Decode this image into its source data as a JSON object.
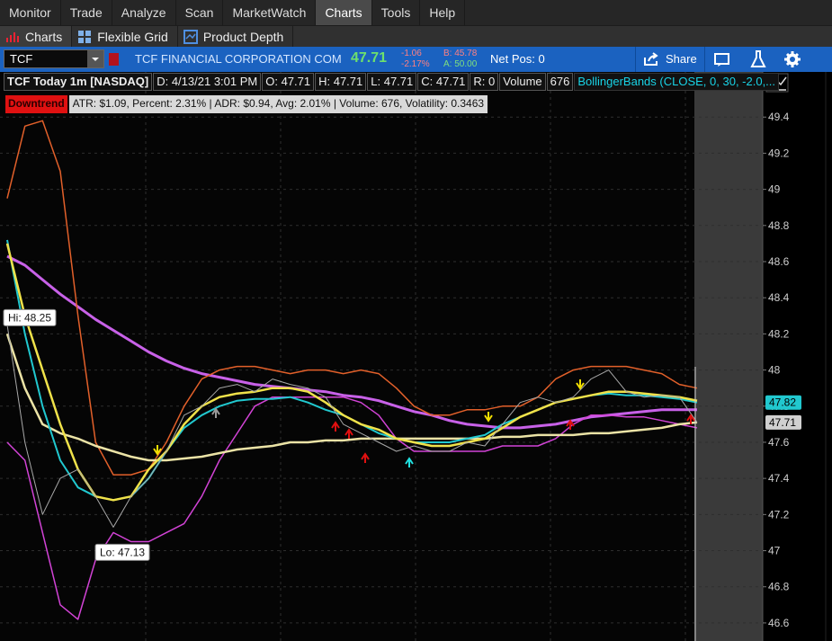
{
  "menu": {
    "items": [
      "Monitor",
      "Trade",
      "Analyze",
      "Scan",
      "MarketWatch",
      "Charts",
      "Tools",
      "Help"
    ],
    "active_index": 5
  },
  "subtabs": [
    "Charts",
    "Flexible Grid",
    "Product Depth"
  ],
  "quote": {
    "symbol": "TCF",
    "company": "TCF FINANCIAL CORPORATION COM",
    "last": "47.71",
    "change": "-1.06",
    "change_pct": "-2.17%",
    "bid": "B: 45.78",
    "ask": "A: 50.00",
    "net_pos": "Net Pos: 0",
    "share": "Share"
  },
  "chart": {
    "header": [
      "TCF Today 1m [NASDAQ]",
      "D: 4/13/21 3:01 PM",
      "O: 47.71",
      "H: 47.71",
      "L: 47.71",
      "C: 47.71",
      "R: 0",
      "Volume",
      "676"
    ],
    "study": "BollingerBands (CLOSE, 0, 30, -2.0,...",
    "trend": "Downtrend",
    "stats": "ATR: $1.09, Percent: 2.31% | ADR: $0.94,  Avg: 2.01% | Volume: 676, Volatility: 0.3463",
    "hi_label": "Hi: 48.25",
    "lo_label": "Lo: 47.13",
    "ylim": [
      46.5,
      49.65
    ],
    "yticks": [
      49.4,
      49.2,
      49,
      48.8,
      48.6,
      48.4,
      48.2,
      48,
      47.8,
      47.6,
      47.4,
      47.2,
      47,
      46.8,
      46.6
    ],
    "grid": true,
    "series": [
      {
        "color": "#c861e8",
        "width": 3,
        "values": [
          48.63,
          48.58,
          48.5,
          48.42,
          48.35,
          48.28,
          48.22,
          48.16,
          48.1,
          48.05,
          48.01,
          47.98,
          47.96,
          47.94,
          47.92,
          47.91,
          47.9,
          47.89,
          47.88,
          47.86,
          47.85,
          47.83,
          47.8,
          47.77,
          47.75,
          47.72,
          47.7,
          47.69,
          47.68,
          47.68,
          47.69,
          47.7,
          47.72,
          47.74,
          47.75,
          47.76,
          47.77,
          47.78,
          47.78,
          47.78
        ]
      },
      {
        "color": "#e2602a",
        "width": 1.5,
        "values": [
          48.95,
          49.35,
          49.38,
          49.1,
          48.3,
          47.6,
          47.42,
          47.42,
          47.45,
          47.6,
          47.8,
          47.95,
          48.0,
          48.02,
          48.02,
          48.0,
          47.98,
          48.0,
          48.0,
          47.98,
          48.0,
          47.98,
          47.9,
          47.8,
          47.75,
          47.75,
          47.78,
          47.78,
          47.8,
          47.8,
          47.85,
          47.95,
          48.0,
          48.02,
          48.02,
          48.02,
          48.0,
          47.98,
          47.92,
          47.9
        ]
      },
      {
        "color": "#d243d6",
        "width": 1.5,
        "values": [
          47.6,
          47.5,
          47.1,
          46.7,
          46.62,
          46.95,
          47.1,
          47.05,
          47.05,
          47.1,
          47.15,
          47.3,
          47.5,
          47.65,
          47.8,
          47.85,
          47.85,
          47.85,
          47.85,
          47.85,
          47.82,
          47.75,
          47.62,
          47.55,
          47.55,
          47.55,
          47.55,
          47.55,
          47.58,
          47.58,
          47.58,
          47.62,
          47.7,
          47.75,
          47.75,
          47.74,
          47.74,
          47.72,
          47.7,
          47.68
        ]
      },
      {
        "color": "#ebe3a6",
        "width": 2.5,
        "values": [
          48.2,
          47.9,
          47.7,
          47.65,
          47.62,
          47.58,
          47.55,
          47.52,
          47.5,
          47.5,
          47.51,
          47.52,
          47.54,
          47.56,
          47.57,
          47.58,
          47.6,
          47.6,
          47.61,
          47.61,
          47.62,
          47.62,
          47.62,
          47.62,
          47.62,
          47.62,
          47.62,
          47.62,
          47.63,
          47.63,
          47.64,
          47.64,
          47.64,
          47.65,
          47.65,
          47.66,
          47.67,
          47.68,
          47.7,
          47.71
        ]
      },
      {
        "color": "#21c8cf",
        "width": 2,
        "values": [
          48.72,
          48.2,
          47.8,
          47.5,
          47.35,
          47.3,
          47.28,
          47.3,
          47.4,
          47.55,
          47.68,
          47.75,
          47.8,
          47.83,
          47.84,
          47.84,
          47.85,
          47.82,
          47.78,
          47.75,
          47.7,
          47.65,
          47.62,
          47.6,
          47.6,
          47.6,
          47.62,
          47.64,
          47.7,
          47.74,
          47.78,
          47.82,
          47.84,
          47.86,
          47.87,
          47.86,
          47.86,
          47.85,
          47.84,
          47.82
        ]
      },
      {
        "color": "#f0e24a",
        "width": 2.5,
        "values": [
          48.7,
          48.3,
          48.0,
          47.7,
          47.45,
          47.3,
          47.28,
          47.3,
          47.45,
          47.55,
          47.7,
          47.8,
          47.85,
          47.87,
          47.88,
          47.9,
          47.9,
          47.88,
          47.82,
          47.75,
          47.7,
          47.67,
          47.62,
          47.6,
          47.58,
          47.58,
          47.6,
          47.62,
          47.68,
          47.74,
          47.78,
          47.82,
          47.84,
          47.86,
          47.88,
          47.88,
          47.87,
          47.86,
          47.85,
          47.83
        ]
      },
      {
        "color": "#a8a8a8",
        "width": 1,
        "values": [
          48.25,
          47.6,
          47.2,
          47.4,
          47.45,
          47.3,
          47.13,
          47.3,
          47.4,
          47.55,
          47.75,
          47.8,
          47.9,
          47.92,
          47.88,
          47.95,
          47.92,
          47.9,
          47.85,
          47.7,
          47.65,
          47.6,
          47.55,
          47.58,
          47.55,
          47.55,
          47.6,
          47.58,
          47.7,
          47.82,
          47.85,
          47.82,
          47.85,
          47.95,
          48.0,
          47.88,
          47.85,
          47.86,
          47.85,
          47.71
        ]
      }
    ],
    "price_tags": [
      {
        "value": 47.82,
        "color": "#21c8cf"
      },
      {
        "value": 47.71,
        "color": "#d0d0d0"
      }
    ]
  }
}
